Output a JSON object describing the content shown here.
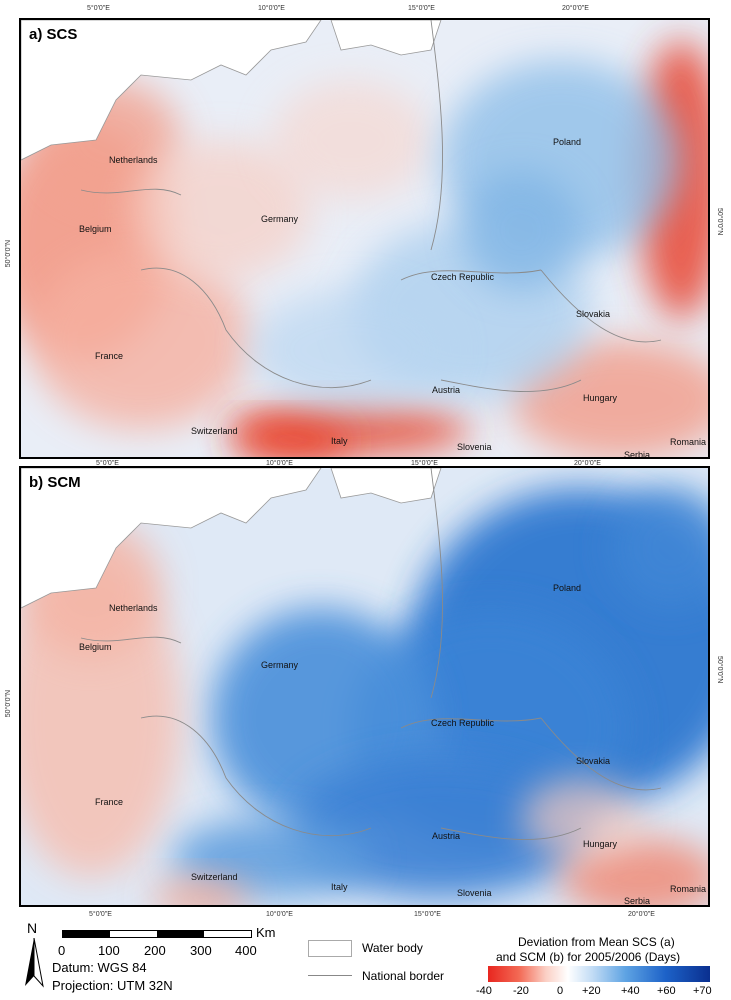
{
  "panels": [
    {
      "label": "a) SCS",
      "variable": "SCS"
    },
    {
      "label": "b) SCM",
      "variable": "SCM"
    }
  ],
  "longitude_ticks": [
    "5°0'0\"E",
    "10°0'0\"E",
    "15°0'0\"E",
    "20°0'0\"E"
  ],
  "latitude_tick": "50°0'0\"N",
  "countries": [
    "Netherlands",
    "Belgium",
    "Germany",
    "Poland",
    "Czech Republic",
    "Slovakia",
    "France",
    "Austria",
    "Hungary",
    "Switzerland",
    "Italy",
    "Slovenia",
    "Romania",
    "Serbia"
  ],
  "scale_bar": {
    "ticks": [
      "0",
      "100",
      "200",
      "300",
      "400"
    ],
    "unit": "Km"
  },
  "north_arrow": {
    "label": "N"
  },
  "datum": "Datum: WGS 84",
  "projection": "Projection: UTM 32N",
  "map_legend": {
    "water_body": "Water body",
    "national_border": "National border"
  },
  "colorbar": {
    "title_line1": "Deviation from Mean SCS (a)",
    "title_line2": "and SCM (b) for 2005/2006 (Days)",
    "ticks": [
      "-40",
      "-20",
      "0",
      "+20",
      "+40",
      "+60",
      "+70"
    ],
    "colors": {
      "min": "#e8261f",
      "mid": "#ffffff",
      "max": "#0a2f8f"
    }
  }
}
